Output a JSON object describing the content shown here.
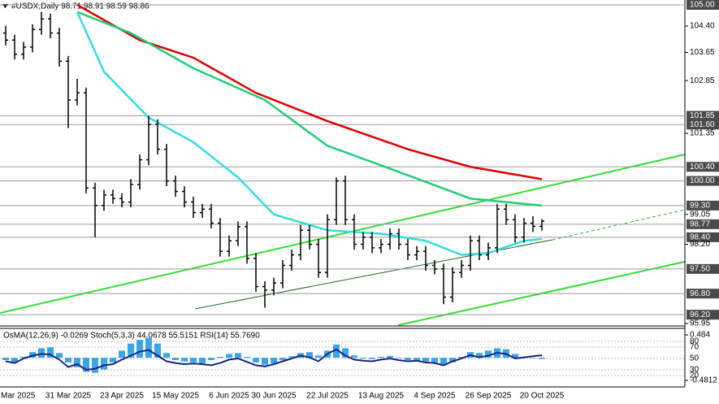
{
  "chart_data": [
    {
      "type": "candlestick",
      "title": "#USDX,Daily  98.71 98.91 98.59 98.86",
      "categories": [
        null,
        "7 Mar 2025",
        null,
        null,
        null,
        null,
        null,
        "31 Mar 2025",
        null,
        null,
        null,
        null,
        null,
        "23 Apr 2025",
        null,
        null,
        null,
        null,
        null,
        "15 May 2025",
        null,
        null,
        null,
        null,
        null,
        "6 Jun 2025",
        null,
        null,
        null,
        null,
        "30 Jun 2025",
        null,
        null,
        null,
        null,
        null,
        "22 Jul 2025",
        null,
        null,
        null,
        null,
        null,
        "13 Aug 2025",
        null,
        null,
        null,
        null,
        null,
        "4 Sep 2025",
        null,
        null,
        null,
        null,
        null,
        "26 Sep 2025",
        null,
        null,
        null,
        null,
        null,
        "20 Oct 2025"
      ],
      "ohlc": [
        [
          104.2,
          104.4,
          103.85,
          104.0
        ],
        [
          104.0,
          104.15,
          103.45,
          103.6
        ],
        [
          103.6,
          103.95,
          103.45,
          103.8
        ],
        [
          103.8,
          104.45,
          103.65,
          104.3
        ],
        [
          104.3,
          104.8,
          104.15,
          104.6
        ],
        [
          104.6,
          104.75,
          104.05,
          104.2
        ],
        [
          104.2,
          104.35,
          103.25,
          103.4
        ],
        [
          103.4,
          103.55,
          101.5,
          102.3
        ],
        [
          102.3,
          102.9,
          102.15,
          102.5
        ],
        [
          102.5,
          102.65,
          99.65,
          99.8
        ],
        [
          99.8,
          99.95,
          98.4,
          99.3
        ],
        [
          99.3,
          99.75,
          99.15,
          99.6
        ],
        [
          99.6,
          99.75,
          99.35,
          99.5
        ],
        [
          99.5,
          99.65,
          99.25,
          99.4
        ],
        [
          99.4,
          100.05,
          99.25,
          99.9
        ],
        [
          99.9,
          100.75,
          99.75,
          100.6
        ],
        [
          100.6,
          101.85,
          100.45,
          101.6
        ],
        [
          101.6,
          101.75,
          100.75,
          100.9
        ],
        [
          100.9,
          101.05,
          99.85,
          100.0
        ],
        [
          100.0,
          100.15,
          99.55,
          99.7
        ],
        [
          99.7,
          99.85,
          99.25,
          99.4
        ],
        [
          99.4,
          99.55,
          98.95,
          99.1
        ],
        [
          99.1,
          99.35,
          98.95,
          99.2
        ],
        [
          99.2,
          99.35,
          98.65,
          98.8
        ],
        [
          98.8,
          98.95,
          97.85,
          98.0
        ],
        [
          98.0,
          98.45,
          97.85,
          98.3
        ],
        [
          98.3,
          98.85,
          98.15,
          98.7
        ],
        [
          98.7,
          98.85,
          97.65,
          97.8
        ],
        [
          97.8,
          97.95,
          96.85,
          97.0
        ],
        [
          97.0,
          97.15,
          96.4,
          96.9
        ],
        [
          96.9,
          97.25,
          96.75,
          97.1
        ],
        [
          97.1,
          97.75,
          96.95,
          97.6
        ],
        [
          97.6,
          98.05,
          97.45,
          97.9
        ],
        [
          97.9,
          98.75,
          97.75,
          98.6
        ],
        [
          98.6,
          98.75,
          98.05,
          98.2
        ],
        [
          98.2,
          98.35,
          97.25,
          97.4
        ],
        [
          97.4,
          99.05,
          97.25,
          98.9
        ],
        [
          98.9,
          100.1,
          98.75,
          100.0
        ],
        [
          100.0,
          100.15,
          98.75,
          98.9
        ],
        [
          98.9,
          99.05,
          98.05,
          98.2
        ],
        [
          98.2,
          98.55,
          98.05,
          98.4
        ],
        [
          98.4,
          98.55,
          97.95,
          98.1
        ],
        [
          98.1,
          98.35,
          97.95,
          98.2
        ],
        [
          98.2,
          98.65,
          98.05,
          98.5
        ],
        [
          98.5,
          98.65,
          98.05,
          98.2
        ],
        [
          98.2,
          98.35,
          97.75,
          97.9
        ],
        [
          97.9,
          98.15,
          97.75,
          98.0
        ],
        [
          98.0,
          98.15,
          97.45,
          97.6
        ],
        [
          97.6,
          97.75,
          97.35,
          97.5
        ],
        [
          97.5,
          97.65,
          96.5,
          96.7
        ],
        [
          96.7,
          97.55,
          96.55,
          97.4
        ],
        [
          97.4,
          97.75,
          97.25,
          97.6
        ],
        [
          97.6,
          98.45,
          97.45,
          98.3
        ],
        [
          98.3,
          98.45,
          97.75,
          97.9
        ],
        [
          97.9,
          98.25,
          97.75,
          98.1
        ],
        [
          98.1,
          99.35,
          97.95,
          99.2
        ],
        [
          99.2,
          99.35,
          98.75,
          98.9
        ],
        [
          98.9,
          99.05,
          98.25,
          98.4
        ],
        [
          98.4,
          98.95,
          98.25,
          98.8
        ],
        [
          98.8,
          99.0,
          98.55,
          98.71
        ],
        [
          98.71,
          98.91,
          98.59,
          98.86
        ]
      ],
      "series": [
        {
          "color": "#e00000",
          "x": [
            8,
            15,
            21,
            28,
            36,
            45,
            52,
            60
          ],
          "values": [
            105.0,
            104.0,
            103.5,
            102.5,
            101.7,
            100.9,
            100.4,
            100.05
          ]
        },
        {
          "color": "#22cc77",
          "x": [
            8,
            14,
            21,
            29,
            36,
            43,
            52,
            60
          ],
          "values": [
            104.8,
            104.2,
            103.2,
            102.3,
            101.0,
            100.35,
            99.5,
            99.3
          ]
        },
        {
          "color": "#33dddd",
          "x": [
            8,
            11,
            16,
            21,
            26,
            30,
            36,
            42,
            47,
            51,
            54,
            58,
            60
          ],
          "values": [
            104.8,
            103.1,
            101.8,
            101.1,
            100.1,
            99.05,
            98.6,
            98.5,
            98.3,
            97.9,
            97.95,
            98.3,
            98.35
          ]
        }
      ],
      "ylim": [
        95.95,
        105.0
      ],
      "yticks": [
        {
          "value": 104.4,
          "label": "104.40"
        },
        {
          "value": 103.65,
          "label": "103.65"
        },
        {
          "value": 102.85,
          "label": "102.85"
        },
        {
          "value": 101.35,
          "label": "101.35"
        },
        {
          "value": 99.05,
          "label": "99.05"
        },
        {
          "value": 98.2,
          "label": "98.20"
        },
        {
          "value": 95.95,
          "label": "95.95"
        }
      ],
      "levels": [
        {
          "value": 105.0,
          "label": "105.00"
        },
        {
          "value": 101.85,
          "label": "101.85"
        },
        {
          "value": 101.6,
          "label": "101.60"
        },
        {
          "value": 100.4,
          "label": "100.40"
        },
        {
          "value": 100.0,
          "label": "100.00"
        },
        {
          "value": 99.3,
          "label": "99.30"
        },
        {
          "value": 98.77,
          "label": "98.77"
        },
        {
          "value": 98.4,
          "label": "98.40"
        },
        {
          "value": 97.5,
          "label": "97.50"
        },
        {
          "value": 96.8,
          "label": "96.80"
        },
        {
          "value": 96.2,
          "label": "96.20"
        }
      ]
    },
    {
      "type": "oscillator",
      "title": "OsMA(12,26,9) -0.0269  Stoch(5,3,3) 44.0678 55.5151  RSI(14) 55.7690",
      "series": [
        {
          "color": "#3aa6e8",
          "style": "histogram",
          "values": [
            -0.05,
            -0.1,
            0.02,
            0.12,
            0.2,
            0.22,
            0.1,
            -0.1,
            -0.2,
            -0.3,
            -0.32,
            -0.25,
            -0.1,
            0.15,
            0.3,
            0.38,
            0.42,
            0.3,
            0.1,
            -0.05,
            -0.08,
            -0.1,
            -0.12,
            -0.05,
            0.02,
            0.08,
            0.1,
            0.02,
            -0.1,
            -0.15,
            -0.12,
            -0.05,
            0.03,
            0.1,
            0.12,
            0.05,
            0.15,
            0.28,
            0.2,
            0.05,
            -0.02,
            -0.03,
            0.02,
            0.04,
            0.0,
            -0.05,
            -0.06,
            -0.08,
            -0.1,
            -0.15,
            -0.1,
            0.02,
            0.12,
            0.1,
            0.15,
            0.2,
            0.18,
            0.08,
            0.02,
            0.0,
            -0.0269
          ]
        },
        {
          "color": "#1a237e",
          "style": "line",
          "axis": "y2",
          "values": [
            45,
            42,
            50,
            55,
            58,
            57,
            48,
            35,
            40,
            30,
            32,
            38,
            40,
            48,
            55,
            62,
            65,
            55,
            45,
            42,
            40,
            41,
            40,
            38,
            42,
            48,
            50,
            44,
            38,
            36,
            40,
            45,
            50,
            55,
            52,
            45,
            58,
            66,
            55,
            48,
            46,
            45,
            48,
            50,
            47,
            45,
            46,
            43,
            42,
            38,
            45,
            50,
            56,
            52,
            55,
            60,
            58,
            50,
            52,
            54,
            55.769
          ]
        }
      ],
      "ylim": [
        -0.4812,
        0.484
      ],
      "yticks": [
        {
          "value": 0.484,
          "label": "0.484"
        },
        {
          "value": -0.4812,
          "label": "-0.4812"
        }
      ],
      "y2lim": [
        0,
        100
      ],
      "y2ticks": [
        80,
        70,
        50,
        30,
        20
      ]
    }
  ]
}
